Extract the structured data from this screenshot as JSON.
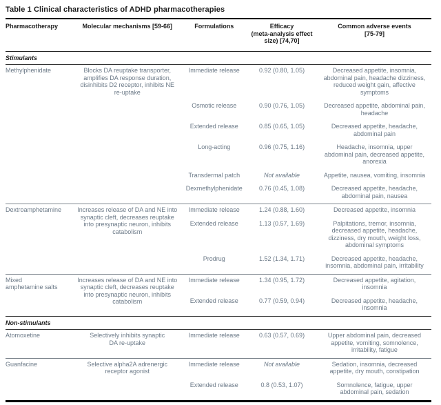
{
  "colors": {
    "ink": "#1c1c1c",
    "body_text": "#6b7987",
    "rule": "#000000"
  },
  "table": {
    "title": "Table 1 Clinical characteristics of ADHD pharmacotherapies",
    "columns": [
      "Pharmacotherapy",
      "Molecular mechanisms [59-66]",
      "Formulations",
      "Efficacy\n(meta-analysis effect\nsize) [74,70]",
      "Common adverse events\n[75-79]"
    ],
    "sections": [
      {
        "label": "Stimulants",
        "groups": [
          {
            "drug": "Methylphenidate",
            "mechanism": "Blocks DA reuptake transporter,\namplifies DA response duration,\ndisinhibits D2 receptor, inhibits NE\nre-uptake",
            "rows": [
              {
                "formulation": "Immediate release",
                "efficacy": "0.92 (0.80, 1.05)",
                "efficacy_italic": false,
                "adverse_events": "Decreased appetite, insomnia,\nabdominal pain, headache dizziness,\nreduced weight gain, affective\nsymptoms"
              },
              {
                "formulation": "Osmotic release",
                "efficacy": "0.90 (0.76, 1.05)",
                "efficacy_italic": false,
                "adverse_events": "Decreased appetite, abdominal pain,\nheadache"
              },
              {
                "formulation": "Extended release",
                "efficacy": "0.85 (0.65, 1.05)",
                "efficacy_italic": false,
                "adverse_events": "Decreased appetite, headache,\nabdominal pain"
              },
              {
                "formulation": "Long-acting",
                "efficacy": "0.96 (0.75, 1.16)",
                "efficacy_italic": false,
                "adverse_events": "Headache, insomnia, upper\nabdominal pain, decreased appetite,\nanorexia"
              },
              {
                "formulation": "Transdermal patch",
                "efficacy": "Not available",
                "efficacy_italic": true,
                "adverse_events": "Appetite, nausea, vomiting, insomnia"
              },
              {
                "formulation": "Dexmethylphenidate",
                "efficacy": "0.76 (0.45, 1.08)",
                "efficacy_italic": false,
                "adverse_events": "Decreased appetite, headache,\nabdominal pain, nausea"
              }
            ]
          },
          {
            "drug": "Dextroamphetamine",
            "mechanism": "Increases release of DA and NE into\nsynaptic cleft, decreases reuptake\ninto presynaptic neuron, inhibits\ncatabolism",
            "rows": [
              {
                "formulation": "Immediate release",
                "efficacy": "1.24 (0.88, 1.60)",
                "efficacy_italic": false,
                "adverse_events": "Decreased appetite, insomnia"
              },
              {
                "formulation": "Extended release",
                "efficacy": "1.13 (0.57, 1.69)",
                "efficacy_italic": false,
                "adverse_events": "Palpitations, tremor, insomnia,\ndecreased appetite, headache,\ndizziness, dry mouth, weight loss,\nabdominal symptoms"
              },
              {
                "formulation": "Prodrug",
                "efficacy": "1.52 (1.34, 1.71)",
                "efficacy_italic": false,
                "adverse_events": "Decreased appetite, headache,\ninsomnia, abdominal pain, irritability"
              }
            ]
          },
          {
            "drug": "Mixed\namphetamine salts",
            "mechanism": "Increases release of DA and NE into\nsynaptic cleft, decreases reuptake\ninto presynaptic neuron, inhibits\ncatabolism",
            "rows": [
              {
                "formulation": "Immediate release",
                "efficacy": "1.34 (0.95, 1.72)",
                "efficacy_italic": false,
                "adverse_events": "Decreased appetite, agitation,\ninsomnia"
              },
              {
                "formulation": "Extended release",
                "efficacy": "0.77 (0.59, 0.94)",
                "efficacy_italic": false,
                "adverse_events": "Decreased appetite, headache,\ninsomnia"
              }
            ]
          }
        ]
      },
      {
        "label": "Non-stimulants",
        "groups": [
          {
            "drug": "Atomoxetine",
            "mechanism": "Selectively inhibits synaptic\nDA re-uptake",
            "rows": [
              {
                "formulation": "Immediate release",
                "efficacy": "0.63 (0.57, 0.69)",
                "efficacy_italic": false,
                "adverse_events": "Upper abdominal pain, decreased\nappetite, vomiting, somnolence,\nirritability, fatigue"
              }
            ]
          },
          {
            "drug": "Guanfacine",
            "mechanism": "Selective alpha2A adrenergic\nreceptor agonist",
            "rows": [
              {
                "formulation": "Immediate release",
                "efficacy": "Not available",
                "efficacy_italic": true,
                "adverse_events": "Sedation, insomnia, decreased\nappetite, dry mouth, constipation"
              },
              {
                "formulation": "Extended release",
                "efficacy": "0.8 (0.53, 1.07)",
                "efficacy_italic": false,
                "adverse_events": "Somnolence, fatigue, upper\nabdominal pain, sedation"
              }
            ]
          }
        ]
      }
    ]
  }
}
